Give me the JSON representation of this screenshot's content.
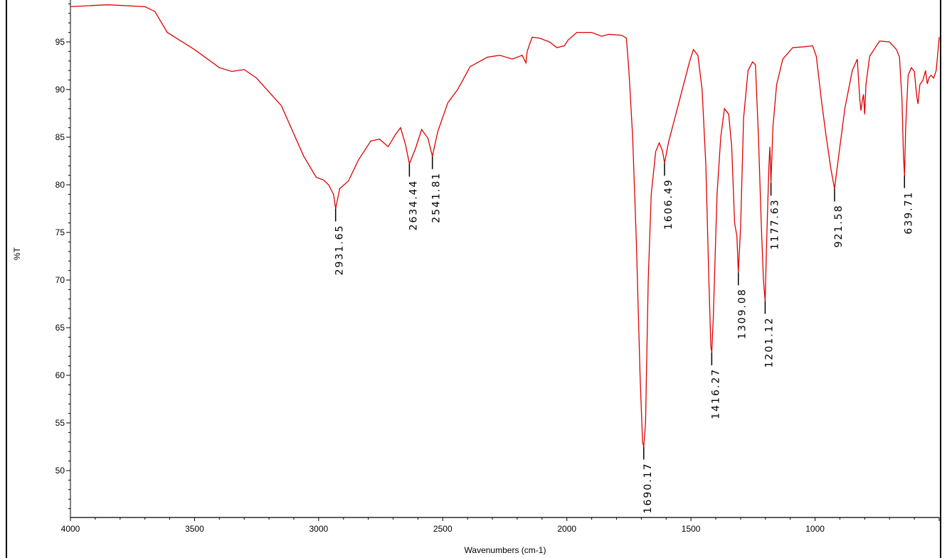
{
  "chart_data": {
    "type": "line",
    "title": "",
    "xlabel": "Wavenumbers (cm-1)",
    "ylabel": "%T",
    "xlim": [
      4000,
      500
    ],
    "ylim": [
      45,
      99
    ],
    "x_reversed": true,
    "x_ticks": [
      4000,
      3500,
      3000,
      2500,
      2000,
      1500,
      1000
    ],
    "y_ticks": [
      50,
      55,
      60,
      65,
      70,
      75,
      80,
      85,
      90,
      95
    ],
    "line_color": "#dd0000",
    "grid": false,
    "series": [
      {
        "points": [
          [
            4000,
            98.7
          ],
          [
            3850,
            98.9
          ],
          [
            3700,
            98.7
          ],
          [
            3660,
            98.2
          ],
          [
            3610,
            96.0
          ],
          [
            3500,
            94.2
          ],
          [
            3400,
            92.3
          ],
          [
            3350,
            91.9
          ],
          [
            3300,
            92.1
          ],
          [
            3250,
            91.2
          ],
          [
            3150,
            88.3
          ],
          [
            3060,
            83.0
          ],
          [
            3010,
            80.8
          ],
          [
            2980,
            80.5
          ],
          [
            2960,
            80.0
          ],
          [
            2940,
            79.0
          ],
          [
            2931.65,
            77.5
          ],
          [
            2915,
            79.6
          ],
          [
            2880,
            80.4
          ],
          [
            2840,
            82.6
          ],
          [
            2790,
            84.6
          ],
          [
            2755,
            84.8
          ],
          [
            2720,
            84.0
          ],
          [
            2690,
            85.3
          ],
          [
            2670,
            86.0
          ],
          [
            2650,
            84.2
          ],
          [
            2634.44,
            82.2
          ],
          [
            2610,
            83.8
          ],
          [
            2585,
            85.8
          ],
          [
            2560,
            84.9
          ],
          [
            2541.81,
            83.0
          ],
          [
            2520,
            85.6
          ],
          [
            2480,
            88.6
          ],
          [
            2440,
            90.0
          ],
          [
            2390,
            92.4
          ],
          [
            2320,
            93.4
          ],
          [
            2270,
            93.6
          ],
          [
            2220,
            93.2
          ],
          [
            2180,
            93.6
          ],
          [
            2165,
            92.8
          ],
          [
            2160,
            94.0
          ],
          [
            2140,
            95.5
          ],
          [
            2110,
            95.4
          ],
          [
            2070,
            95.0
          ],
          [
            2040,
            94.4
          ],
          [
            2010,
            94.6
          ],
          [
            1995,
            95.2
          ],
          [
            1960,
            96.0
          ],
          [
            1900,
            96.0
          ],
          [
            1860,
            95.6
          ],
          [
            1830,
            95.8
          ],
          [
            1780,
            95.7
          ],
          [
            1760,
            95.4
          ],
          [
            1750,
            92.0
          ],
          [
            1735,
            85.0
          ],
          [
            1720,
            74.0
          ],
          [
            1705,
            60.0
          ],
          [
            1695,
            53.0
          ],
          [
            1690.17,
            52.5
          ],
          [
            1683,
            55.0
          ],
          [
            1672,
            70.0
          ],
          [
            1660,
            79.0
          ],
          [
            1642,
            83.5
          ],
          [
            1628,
            84.4
          ],
          [
            1615,
            83.6
          ],
          [
            1606.49,
            82.3
          ],
          [
            1590,
            84.5
          ],
          [
            1560,
            87.5
          ],
          [
            1530,
            90.5
          ],
          [
            1505,
            93.0
          ],
          [
            1490,
            94.2
          ],
          [
            1472,
            93.6
          ],
          [
            1455,
            90.0
          ],
          [
            1440,
            82.0
          ],
          [
            1428,
            70.0
          ],
          [
            1420,
            63.0
          ],
          [
            1416.27,
            62.4
          ],
          [
            1410,
            66.0
          ],
          [
            1395,
            79.0
          ],
          [
            1380,
            85.0
          ],
          [
            1365,
            88.0
          ],
          [
            1348,
            87.4
          ],
          [
            1336,
            84.0
          ],
          [
            1324,
            76.0
          ],
          [
            1315,
            74.6
          ],
          [
            1309.08,
            70.8
          ],
          [
            1300,
            75.5
          ],
          [
            1288,
            87.0
          ],
          [
            1270,
            92.0
          ],
          [
            1252,
            92.9
          ],
          [
            1240,
            92.6
          ],
          [
            1228,
            85.0
          ],
          [
            1217,
            76.0
          ],
          [
            1208,
            70.0
          ],
          [
            1201.12,
            67.8
          ],
          [
            1195,
            74.0
          ],
          [
            1186,
            82.0
          ],
          [
            1182,
            84.0
          ],
          [
            1177.63,
            80.2
          ],
          [
            1170,
            86.0
          ],
          [
            1155,
            90.5
          ],
          [
            1130,
            93.2
          ],
          [
            1090,
            94.4
          ],
          [
            1040,
            94.5
          ],
          [
            1010,
            94.6
          ],
          [
            995,
            93.5
          ],
          [
            975,
            89.0
          ],
          [
            955,
            85.0
          ],
          [
            935,
            81.5
          ],
          [
            921.58,
            79.6
          ],
          [
            905,
            83.0
          ],
          [
            880,
            88.0
          ],
          [
            850,
            92.0
          ],
          [
            830,
            93.2
          ],
          [
            820,
            89.0
          ],
          [
            815,
            87.8
          ],
          [
            810,
            88.8
          ],
          [
            805,
            89.5
          ],
          [
            800,
            87.4
          ],
          [
            795,
            90.5
          ],
          [
            780,
            93.5
          ],
          [
            740,
            95.1
          ],
          [
            700,
            95.0
          ],
          [
            672,
            94.2
          ],
          [
            660,
            93.4
          ],
          [
            650,
            89.0
          ],
          [
            644,
            83.0
          ],
          [
            639.71,
            81.0
          ],
          [
            635,
            86.0
          ],
          [
            625,
            91.5
          ],
          [
            612,
            92.3
          ],
          [
            600,
            91.9
          ],
          [
            590,
            89.2
          ],
          [
            585,
            88.5
          ],
          [
            578,
            90.5
          ],
          [
            565,
            91.0
          ],
          [
            555,
            92.0
          ],
          [
            548,
            90.6
          ],
          [
            540,
            91.3
          ],
          [
            532,
            91.5
          ],
          [
            522,
            91.2
          ],
          [
            512,
            92.0
          ],
          [
            505,
            94.0
          ],
          [
            500,
            95.5
          ]
        ]
      }
    ],
    "peaks": [
      {
        "label": "2931.65",
        "x": 2931.65,
        "y": 77.5
      },
      {
        "label": "2634.44",
        "x": 2634.44,
        "y": 82.2
      },
      {
        "label": "2541.81",
        "x": 2541.81,
        "y": 83.0
      },
      {
        "label": "1690.17",
        "x": 1690.17,
        "y": 52.5
      },
      {
        "label": "1606.49",
        "x": 1606.49,
        "y": 82.3
      },
      {
        "label": "1416.27",
        "x": 1416.27,
        "y": 62.4
      },
      {
        "label": "1309.08",
        "x": 1309.08,
        "y": 70.8
      },
      {
        "label": "1201.12",
        "x": 1201.12,
        "y": 67.8
      },
      {
        "label": "1177.63",
        "x": 1177.63,
        "y": 80.2
      },
      {
        "label": "921.58",
        "x": 921.58,
        "y": 79.6
      },
      {
        "label": "639.71",
        "x": 639.71,
        "y": 81.0
      }
    ]
  }
}
